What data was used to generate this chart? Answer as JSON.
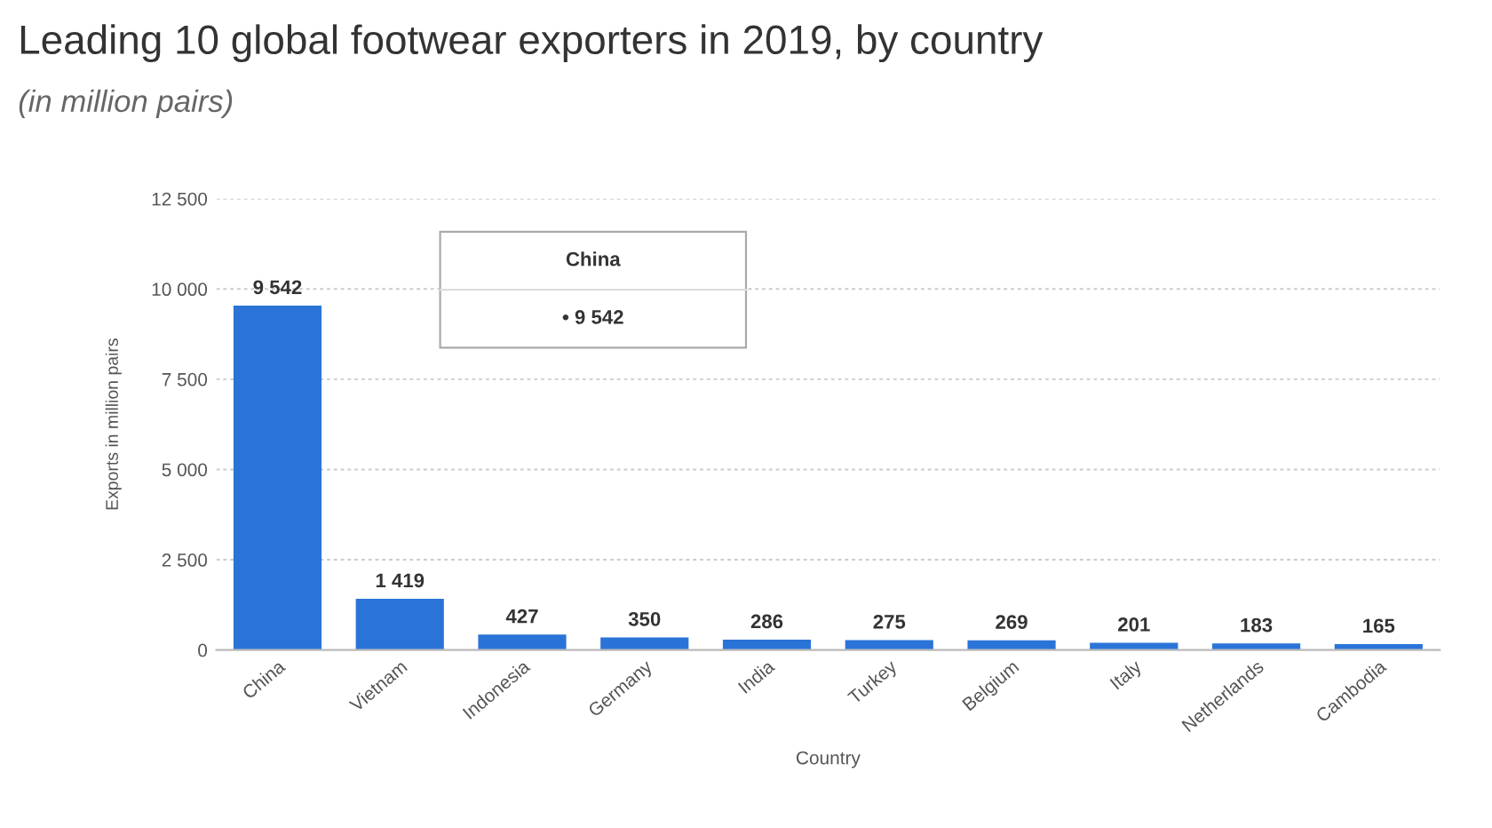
{
  "chart_data": {
    "type": "bar",
    "title": "Leading 10 global footwear exporters in 2019, by country",
    "subtitle": "(in million pairs)",
    "xlabel": "Country",
    "ylabel": "Exports in million pairs",
    "categories": [
      "China",
      "Vietnam",
      "Indonesia",
      "Germany",
      "India",
      "Turkey",
      "Belgium",
      "Italy",
      "Netherlands",
      "Cambodia"
    ],
    "values": [
      9542,
      1419,
      427,
      350,
      286,
      275,
      269,
      201,
      183,
      165
    ],
    "value_labels": [
      "9 542",
      "1 419",
      "427",
      "350",
      "286",
      "275",
      "269",
      "201",
      "183",
      "165"
    ],
    "color": "#2a74d8",
    "ylim": [
      0,
      12500
    ],
    "yticks": [
      {
        "value": 0,
        "label": "0"
      },
      {
        "value": 2500,
        "label": "2 500"
      },
      {
        "value": 5000,
        "label": "5 000"
      },
      {
        "value": 7500,
        "label": "7 500"
      },
      {
        "value": 10000,
        "label": "10 000"
      },
      {
        "value": 12500,
        "label": "12 500"
      }
    ],
    "grid": "y",
    "annotations": [
      "China",
      "• 9 542"
    ]
  }
}
